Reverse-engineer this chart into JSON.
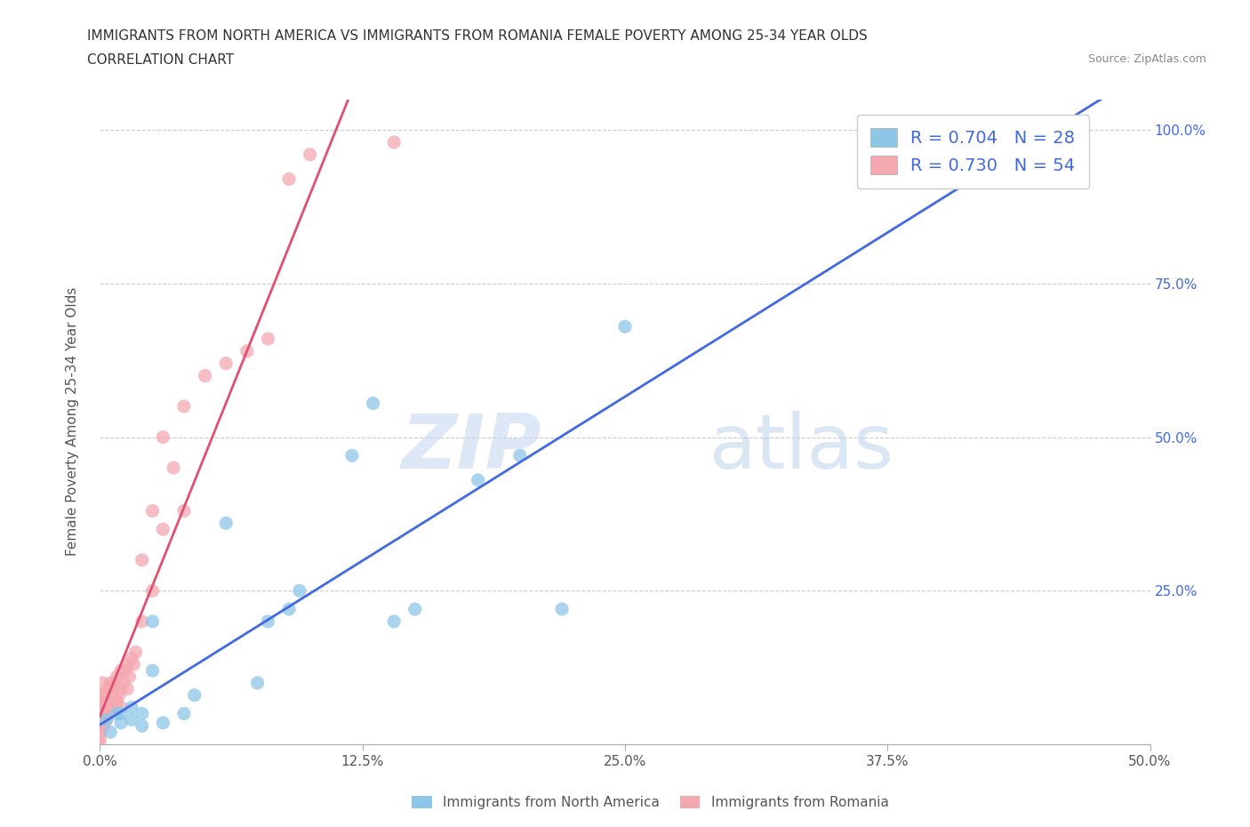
{
  "title_line1": "IMMIGRANTS FROM NORTH AMERICA VS IMMIGRANTS FROM ROMANIA FEMALE POVERTY AMONG 25-34 YEAR OLDS",
  "title_line2": "CORRELATION CHART",
  "source": "Source: ZipAtlas.com",
  "ylabel": "Female Poverty Among 25-34 Year Olds",
  "xlim": [
    0.0,
    0.5
  ],
  "ylim": [
    0.0,
    1.05
  ],
  "xtick_labels": [
    "0.0%",
    "",
    "12.5%",
    "",
    "25.0%",
    "",
    "37.5%",
    "",
    "50.0%"
  ],
  "xtick_vals": [
    0.0,
    0.0625,
    0.125,
    0.1875,
    0.25,
    0.3125,
    0.375,
    0.4375,
    0.5
  ],
  "xtick_display_labels": [
    "0.0%",
    "12.5%",
    "25.0%",
    "37.5%",
    "50.0%"
  ],
  "xtick_display_vals": [
    0.0,
    0.125,
    0.25,
    0.375,
    0.5
  ],
  "ytick_vals": [
    0.25,
    0.5,
    0.75,
    1.0
  ],
  "right_ytick_labels": [
    "25.0%",
    "50.0%",
    "75.0%",
    "100.0%"
  ],
  "north_america_color": "#8ec6e8",
  "romania_color": "#f4a8b0",
  "north_america_line_color": "#4169e1",
  "romania_line_color": "#e05070",
  "R_north_america": 0.704,
  "N_north_america": 28,
  "R_romania": 0.73,
  "N_romania": 54,
  "watermark_zip": "ZIP",
  "watermark_atlas": "atlas",
  "north_america_x": [
    0.003,
    0.005,
    0.008,
    0.01,
    0.01,
    0.015,
    0.015,
    0.02,
    0.02,
    0.025,
    0.025,
    0.03,
    0.04,
    0.045,
    0.06,
    0.075,
    0.08,
    0.09,
    0.095,
    0.12,
    0.13,
    0.14,
    0.15,
    0.18,
    0.2,
    0.22,
    0.25,
    0.44
  ],
  "north_america_y": [
    0.04,
    0.02,
    0.05,
    0.035,
    0.05,
    0.04,
    0.06,
    0.03,
    0.05,
    0.12,
    0.2,
    0.035,
    0.05,
    0.08,
    0.36,
    0.1,
    0.2,
    0.22,
    0.25,
    0.47,
    0.555,
    0.2,
    0.22,
    0.43,
    0.47,
    0.22,
    0.68,
    1.0
  ],
  "romania_x": [
    0.0,
    0.0,
    0.0,
    0.0,
    0.0,
    0.0,
    0.0,
    0.0,
    0.001,
    0.001,
    0.001,
    0.001,
    0.002,
    0.002,
    0.003,
    0.003,
    0.004,
    0.004,
    0.005,
    0.005,
    0.006,
    0.006,
    0.007,
    0.007,
    0.008,
    0.008,
    0.009,
    0.01,
    0.01,
    0.01,
    0.011,
    0.012,
    0.013,
    0.013,
    0.014,
    0.015,
    0.016,
    0.017,
    0.02,
    0.02,
    0.025,
    0.025,
    0.03,
    0.03,
    0.035,
    0.04,
    0.04,
    0.05,
    0.06,
    0.07,
    0.08,
    0.09,
    0.1,
    0.14
  ],
  "romania_y": [
    0.0,
    0.01,
    0.02,
    0.03,
    0.04,
    0.05,
    0.06,
    0.08,
    0.04,
    0.06,
    0.08,
    0.1,
    0.03,
    0.07,
    0.04,
    0.08,
    0.05,
    0.09,
    0.06,
    0.1,
    0.06,
    0.09,
    0.07,
    0.1,
    0.07,
    0.11,
    0.08,
    0.06,
    0.09,
    0.12,
    0.1,
    0.12,
    0.09,
    0.13,
    0.11,
    0.14,
    0.13,
    0.15,
    0.2,
    0.3,
    0.25,
    0.38,
    0.35,
    0.5,
    0.45,
    0.38,
    0.55,
    0.6,
    0.62,
    0.64,
    0.66,
    0.92,
    0.96,
    0.98
  ],
  "na_line_x": [
    0.0,
    0.44
  ],
  "na_line_y_from": 0.0,
  "na_line_y_to": 1.0,
  "ro_line_x": [
    0.0,
    0.14
  ],
  "ro_line_y_from": 0.0,
  "ro_line_y_to": 0.98
}
